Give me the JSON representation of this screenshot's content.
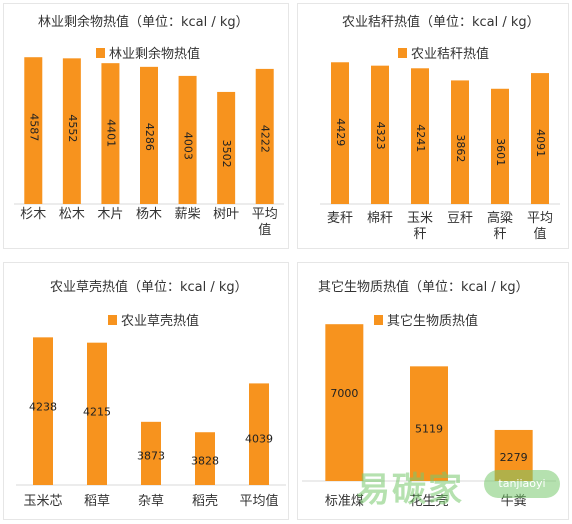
{
  "colors": {
    "bar": "#f7931e",
    "axis": "#d9d9d9",
    "text": "#333333"
  },
  "chart_data": [
    {
      "type": "bar",
      "title": "林业剩余物热值（单位：kcal / kg）",
      "legend": "林业剩余物热值",
      "categories": [
        [
          "杉木"
        ],
        [
          "松木"
        ],
        [
          "木片"
        ],
        [
          "杨木"
        ],
        [
          "薪柴"
        ],
        [
          "树叶"
        ],
        [
          "平均",
          "值"
        ]
      ],
      "values": [
        4587,
        4552,
        4401,
        4286,
        4003,
        3502,
        4222
      ],
      "ylim": [
        0,
        5000
      ]
    },
    {
      "type": "bar",
      "title": "农业秸秆热值（单位：kcal / kg）",
      "legend": "农业秸秆热值",
      "categories": [
        [
          "麦秆"
        ],
        [
          "棉秆"
        ],
        [
          "玉米",
          "秆"
        ],
        [
          "豆秆"
        ],
        [
          "高粱",
          "秆"
        ],
        [
          "平均",
          "值"
        ]
      ],
      "values": [
        4429,
        4323,
        4241,
        3862,
        3601,
        4091
      ],
      "ylim": [
        0,
        5000
      ]
    },
    {
      "type": "bar",
      "title": "农业草壳热值（单位：kcal / kg）",
      "legend": "农业草壳热值",
      "categories": [
        [
          "玉米芯"
        ],
        [
          "稻草"
        ],
        [
          "杂草"
        ],
        [
          "稻壳"
        ],
        [
          "平均值"
        ]
      ],
      "values": [
        4238,
        4215,
        3873,
        3828,
        4039
      ],
      "ylim": [
        3600,
        4300
      ]
    },
    {
      "type": "bar",
      "title": "其它生物质热值（单位：kcal / kg）",
      "legend": "其它生物质热值",
      "categories": [
        [
          "标准煤"
        ],
        [
          "花生壳"
        ],
        [
          "牛粪"
        ]
      ],
      "values": [
        7000,
        5119,
        2279
      ],
      "ylim": [
        0,
        7500
      ]
    }
  ],
  "watermark": {
    "main": "易碳家",
    "badge": "tanjiaoyi"
  }
}
